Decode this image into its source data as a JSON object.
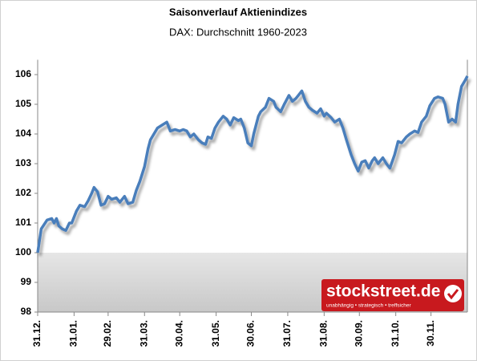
{
  "chart_data": {
    "type": "line",
    "title": "Saisonverlauf Aktienindizes",
    "subtitle": "DAX: Durchschnitt 1960-2023",
    "x": [
      0,
      3,
      8,
      12,
      14,
      16,
      18,
      21,
      24,
      27,
      29,
      33,
      36,
      40,
      43,
      46,
      48,
      51,
      54,
      57,
      60,
      63,
      67,
      70,
      74,
      77,
      81,
      84,
      87,
      91,
      94,
      96,
      99,
      102,
      106,
      110,
      113,
      117,
      121,
      124,
      127,
      130,
      133,
      137,
      140,
      143,
      145,
      148,
      151,
      154,
      158,
      161,
      164,
      167,
      171,
      173,
      176,
      179,
      182,
      184,
      188,
      190,
      194,
      197,
      201,
      203,
      207,
      210,
      214,
      217,
      220,
      222,
      225,
      228,
      231,
      234,
      238,
      241,
      244,
      246,
      250,
      253,
      257,
      260,
      263,
      267,
      270,
      273,
      276,
      279,
      282,
      285,
      287,
      290,
      294,
      297,
      300,
      304,
      307,
      310,
      314,
      317,
      321,
      324,
      327,
      331,
      334,
      338,
      341,
      345,
      347,
      350,
      353,
      356,
      358,
      361,
      364,
      366
    ],
    "series": [
      {
        "name": "DAX",
        "color": "#4a7ebb",
        "values": [
          100,
          100.8,
          101.1,
          101.15,
          101,
          101.15,
          100.9,
          100.8,
          100.75,
          101,
          101,
          101.4,
          101.6,
          101.55,
          101.75,
          102,
          102.2,
          102.05,
          101.6,
          101.65,
          101.9,
          101.8,
          101.85,
          101.7,
          101.9,
          101.65,
          101.7,
          102.1,
          102.4,
          102.9,
          103.5,
          103.8,
          104,
          104.2,
          104.3,
          104.4,
          104.1,
          104.15,
          104.1,
          104.15,
          104.1,
          103.9,
          104,
          103.8,
          103.7,
          103.65,
          103.9,
          103.85,
          104.2,
          104.4,
          104.6,
          104.5,
          104.3,
          104.55,
          104.45,
          104.5,
          104.2,
          103.7,
          103.6,
          104,
          104.6,
          104.75,
          104.9,
          105.2,
          105.1,
          104.9,
          104.75,
          105,
          105.3,
          105.1,
          105.2,
          105.3,
          105.45,
          105.1,
          104.9,
          104.8,
          104.7,
          104.85,
          104.6,
          104.7,
          104.55,
          104.4,
          104.5,
          104.2,
          103.8,
          103.3,
          103,
          102.75,
          103.05,
          103.1,
          102.85,
          103.1,
          103.2,
          103,
          103.2,
          103,
          102.85,
          103.3,
          103.75,
          103.7,
          103.9,
          104,
          104.1,
          104.05,
          104.4,
          104.6,
          104.95,
          105.2,
          105.25,
          105.2,
          105,
          104.4,
          104.5,
          104.4,
          105,
          105.6,
          105.8,
          105.95
        ]
      }
    ],
    "xlim": [
      0,
      366
    ],
    "xticks": [
      {
        "value": 0,
        "label": "31.12."
      },
      {
        "value": 31,
        "label": "31.01."
      },
      {
        "value": 60,
        "label": "29.02."
      },
      {
        "value": 91,
        "label": "31.03."
      },
      {
        "value": 121,
        "label": "30.04."
      },
      {
        "value": 152,
        "label": "31.05."
      },
      {
        "value": 182,
        "label": "30.06."
      },
      {
        "value": 213,
        "label": "31.07."
      },
      {
        "value": 244,
        "label": "31.08."
      },
      {
        "value": 274,
        "label": "30.09."
      },
      {
        "value": 305,
        "label": "31.10."
      },
      {
        "value": 335,
        "label": "30.11."
      }
    ],
    "ylim": [
      98,
      106.5
    ],
    "yticks": [
      98,
      99,
      100,
      101,
      102,
      103,
      104,
      105,
      106
    ],
    "grid": false,
    "logo": {
      "text": "stockstreet.de",
      "tagline": "unabhängig • strategisch • treffsicher"
    }
  }
}
